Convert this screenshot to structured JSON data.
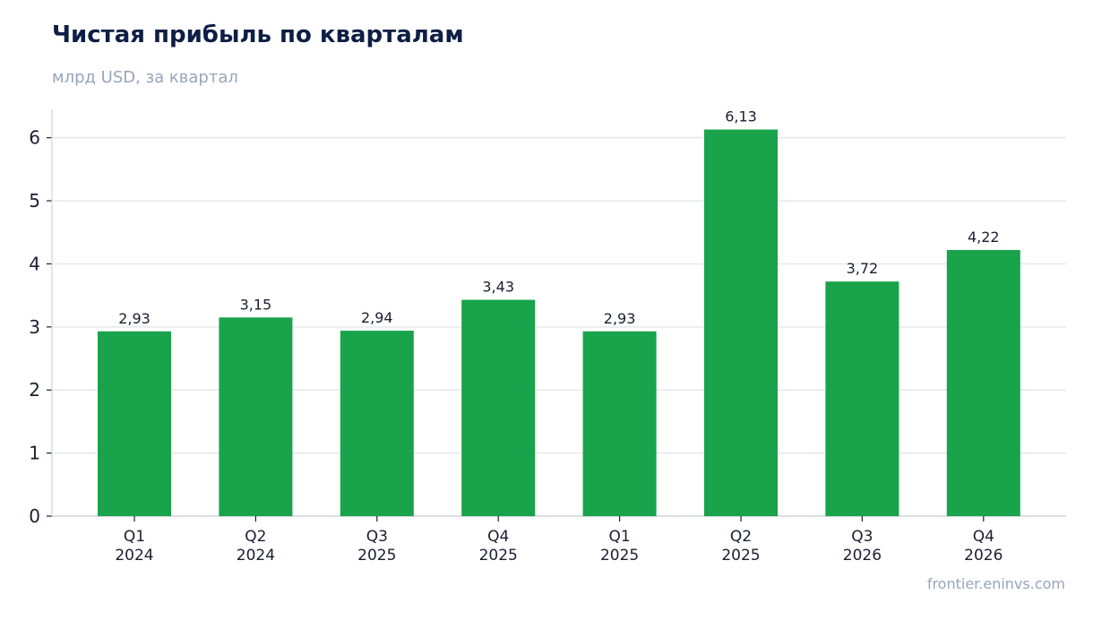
{
  "title": "Чистая прибыль по кварталам",
  "subtitle": "млрд USD, за квартал",
  "source": "frontier.eninvs.com",
  "colors": {
    "bar": "#19a34a",
    "grid": "#e6e8eb",
    "axis": "#cfd4da",
    "text": "#1a1f2e",
    "title": "#0e1f45",
    "muted": "#97a5b8"
  },
  "chart_data": {
    "type": "bar",
    "categories": [
      [
        "Q1",
        "2024"
      ],
      [
        "Q2",
        "2024"
      ],
      [
        "Q3",
        "2025"
      ],
      [
        "Q4",
        "2025"
      ],
      [
        "Q1",
        "2025"
      ],
      [
        "Q2",
        "2025"
      ],
      [
        "Q3",
        "2026"
      ],
      [
        "Q4",
        "2026"
      ]
    ],
    "values": [
      2.93,
      3.15,
      2.94,
      3.43,
      2.93,
      6.13,
      3.72,
      4.22
    ],
    "value_labels": [
      "2,93",
      "3,15",
      "2,94",
      "3,43",
      "2,93",
      "6,13",
      "3,72",
      "4,22"
    ],
    "y_ticks": [
      0,
      1,
      2,
      3,
      4,
      5,
      6
    ],
    "ylim": [
      0,
      6.45
    ],
    "grid": true,
    "legend": "none"
  }
}
